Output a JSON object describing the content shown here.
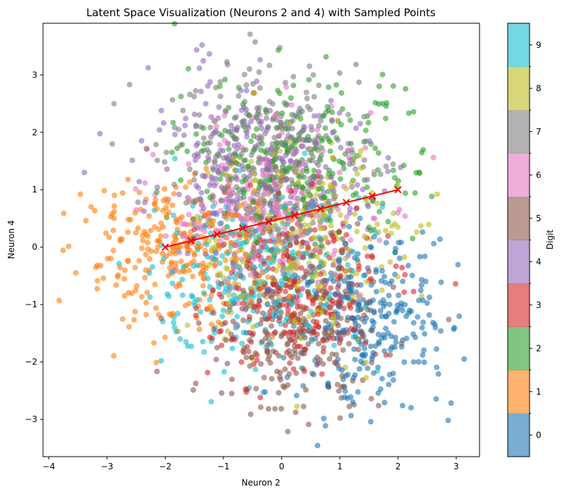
{
  "chart_data": {
    "type": "scatter",
    "title": "Latent Space Visualization (Neurons 2 and 4) with Sampled Points",
    "xlabel": "Neuron 2",
    "ylabel": "Neuron 4",
    "xlim": [
      -4.1,
      3.4
    ],
    "ylim": [
      -3.65,
      3.9
    ],
    "xticks": [
      -4,
      -3,
      -2,
      -1,
      0,
      1,
      2,
      3
    ],
    "yticks": [
      -3,
      -2,
      -1,
      0,
      1,
      2,
      3
    ],
    "grid": false,
    "marker_alpha": 0.6,
    "colorbar": {
      "label": "Digit",
      "ticks": [
        "0",
        "1",
        "2",
        "3",
        "4",
        "5",
        "6",
        "7",
        "8",
        "9"
      ],
      "colormap": "tab10",
      "colors": [
        "#1f77b4",
        "#ff7f0e",
        "#2ca02c",
        "#d62728",
        "#9467bd",
        "#8c564b",
        "#e377c2",
        "#7f7f7f",
        "#bcbd22",
        "#17becf"
      ]
    },
    "clusters": [
      {
        "digit": "0",
        "center": [
          1.5,
          -1.2
        ],
        "spread": [
          0.75,
          0.75
        ],
        "color": "#1f77b4"
      },
      {
        "digit": "1",
        "center": [
          -1.9,
          -0.1
        ],
        "spread": [
          0.75,
          0.65
        ],
        "color": "#ff7f0e"
      },
      {
        "digit": "2",
        "center": [
          0.4,
          1.5
        ],
        "spread": [
          0.95,
          0.75
        ],
        "color": "#2ca02c"
      },
      {
        "digit": "3",
        "center": [
          0.3,
          -0.7
        ],
        "spread": [
          0.75,
          0.75
        ],
        "color": "#d62728"
      },
      {
        "digit": "4",
        "center": [
          -0.3,
          1.4
        ],
        "spread": [
          0.95,
          0.75
        ],
        "color": "#9467bd"
      },
      {
        "digit": "5",
        "center": [
          0.2,
          -1.5
        ],
        "spread": [
          0.75,
          0.7
        ],
        "color": "#8c564b"
      },
      {
        "digit": "6",
        "center": [
          -0.2,
          0.6
        ],
        "spread": [
          0.85,
          0.8
        ],
        "color": "#e377c2"
      },
      {
        "digit": "7",
        "center": [
          -0.3,
          1.6
        ],
        "spread": [
          0.85,
          0.75
        ],
        "color": "#7f7f7f"
      },
      {
        "digit": "8",
        "center": [
          0.2,
          0.1
        ],
        "spread": [
          0.85,
          0.85
        ],
        "color": "#bcbd22"
      },
      {
        "digit": "9",
        "center": [
          -0.5,
          -0.6
        ],
        "spread": [
          0.9,
          0.75
        ],
        "color": "#17becf"
      }
    ],
    "series": [
      {
        "name": "",
        "type": "line",
        "color": "#ff0000",
        "marker": "x",
        "x": [
          -2.0,
          -1.556,
          -1.111,
          -0.667,
          -0.222,
          0.222,
          0.667,
          1.111,
          1.556,
          2.0
        ],
        "y": [
          0.0,
          0.111,
          0.222,
          0.333,
          0.444,
          0.556,
          0.667,
          0.778,
          0.889,
          1.0
        ]
      }
    ]
  }
}
